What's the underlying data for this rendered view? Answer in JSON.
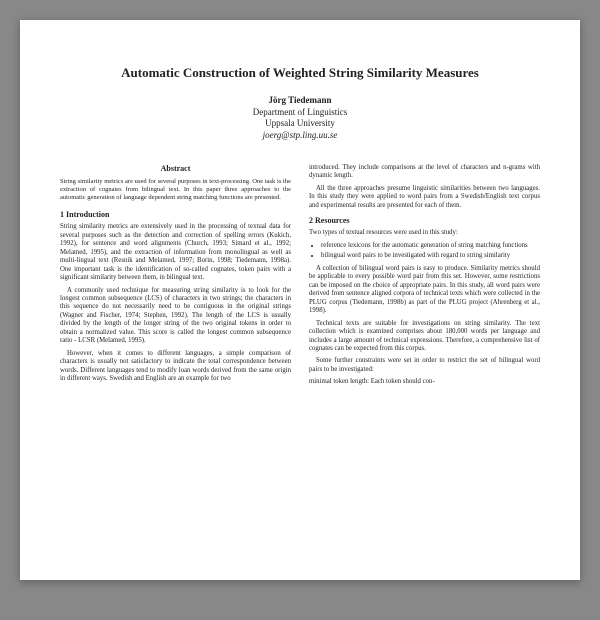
{
  "title": "Automatic Construction of Weighted String Similarity Measures",
  "author": {
    "name": "Jörg Tiedemann",
    "dept": "Department of Linguistics",
    "univ": "Uppsala University",
    "email": "joerg@stp.ling.uu.se"
  },
  "abstract": {
    "heading": "Abstract",
    "text": "String similarity metrics are used for several purposes in text-processing. One task is the extraction of cognates from bilingual text. In this paper three approaches to the automatic generation of language dependent string matching functions are presented."
  },
  "sec1": {
    "heading": "1   Introduction",
    "p1": "String similarity metrics are extensively used in the processing of textual data for several purposes such as the detection and correction of spelling errors (Kukich, 1992), for sentence and word alignments (Church, 1993; Simard et al., 1992; Melamed, 1995), and the extraction of information from monolingual as well as multi-lingual text (Resnik and Melamed, 1997; Borin, 1998; Tiedemann, 1998a). One important task is the identification of so-called cognates, token pairs with a significant similarity between them, in bilingual text.",
    "p2": "A commonly used technique for measuring string similarity is to look for the longest common subsequence (LCS) of characters in two strings; the characters in this sequence do not necessarily need to be contiguous in the original strings (Wagner and Fischer, 1974; Stephen, 1992). The length of the LCS is usually divided by the length of the longer string of the two original tokens in order to obtain a normalized value. This score is called the longest common subsequence ratio - LCSR (Melamed, 1995).",
    "p3": "However, when it comes to different languages, a simple comparison of characters is usually not satisfactory to indicate the total correspondence between words. Different languages tend to modify loan words derived from the same origin in different ways. Swedish and English are an example for two"
  },
  "colR": {
    "p1": "introduced. They include comparisons at the level of characters and n-grams with dynamic length.",
    "p2": "All the three approaches presume linguistic similarities between two languages. In this study they were applied to word pairs from a Swedish/English text corpus and experimental results are presented for each of them.",
    "sec2head": "2   Resources",
    "p3": "Two types of textual resources were used in this study:",
    "li1": "reference lexicons for the automatic generation of string matching functions",
    "li2": "bilingual word pairs to be investigated with regard to string similarity",
    "p4": "A collection of bilingual word pairs is easy to produce. Similarity metrics should be applicable to every possible word pair from this set. However, some restrictions can be imposed on the choice of appropriate pairs. In this study, all word pairs were derived from sentence aligned corpora of technical texts which were collected in the PLUG corpus (Tiedemann, 1998b) as part of the PLUG project (Ahrenberg et al., 1998).",
    "p5": "Technical texts are suitable for investigations on string similarity. The text collection which is examined comprises about 180,000 words per language and includes a large amount of technical expressions. Therefore, a comprehensive list of cognates can be expected from this corpus.",
    "p6": "Some further constraints were set in order to restrict the set of bilingual word pairs to be investigated:",
    "p7": "minimal token length: Each token should con-"
  }
}
